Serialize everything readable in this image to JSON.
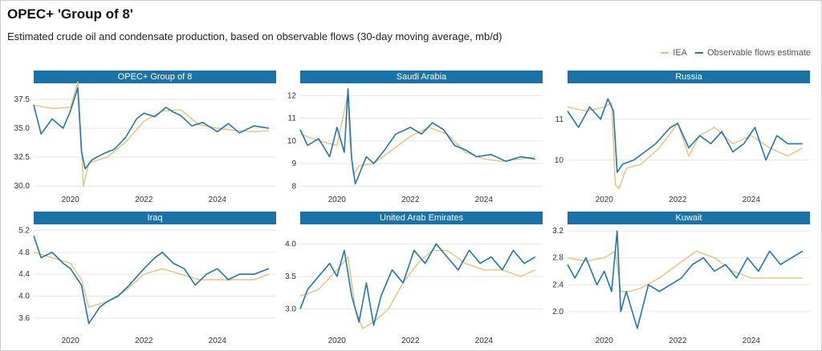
{
  "header": {
    "title": "OPEC+ 'Group of 8'",
    "subtitle": "Estimated crude oil and condensate production, based on observable flows (30-day moving average, mb/d)"
  },
  "legend": {
    "items": [
      {
        "label": "IEA",
        "color": "#e8c27a"
      },
      {
        "label": "Observable flows estimate",
        "color": "#1f77b4"
      }
    ]
  },
  "colors": {
    "panel_header": "#1a73a8",
    "iea": "#e8c27a",
    "obs": "#1f77b4"
  },
  "chart_data": [
    {
      "type": "line",
      "title": "OPEC+ Group of 8",
      "x_ticks": [
        2020,
        2022,
        2024
      ],
      "xlim": [
        2019.0,
        2025.6
      ],
      "y_ticks": [
        "30.0",
        "32.5",
        "35.0",
        "37.5"
      ],
      "ylim": [
        29.6,
        38.6
      ],
      "series": [
        {
          "name": "IEA",
          "x": [
            2019.0,
            2019.5,
            2020.0,
            2020.2,
            2020.3,
            2020.35,
            2020.5,
            2021.0,
            2021.5,
            2022.0,
            2022.5,
            2023.0,
            2023.5,
            2024.0,
            2024.5,
            2025.0,
            2025.4
          ],
          "y": [
            37.0,
            36.7,
            36.8,
            39.0,
            33.5,
            30.0,
            32.0,
            32.5,
            33.8,
            35.6,
            36.5,
            36.6,
            35.3,
            35.0,
            34.8,
            34.7,
            34.8
          ]
        },
        {
          "name": "Observable flows estimate",
          "x": [
            2019.0,
            2019.2,
            2019.5,
            2019.8,
            2020.0,
            2020.2,
            2020.3,
            2020.4,
            2020.6,
            2020.9,
            2021.2,
            2021.5,
            2021.8,
            2022.0,
            2022.3,
            2022.6,
            2022.8,
            2023.0,
            2023.3,
            2023.6,
            2024.0,
            2024.3,
            2024.6,
            2025.0,
            2025.4
          ],
          "y": [
            37.0,
            34.5,
            35.8,
            35.0,
            36.5,
            38.5,
            33.0,
            31.5,
            32.3,
            32.8,
            33.2,
            34.2,
            35.8,
            36.3,
            36.0,
            36.8,
            36.4,
            36.1,
            35.2,
            35.5,
            34.7,
            35.4,
            34.6,
            35.2,
            35.0
          ]
        }
      ]
    },
    {
      "type": "line",
      "title": "Saudi Arabia",
      "x_ticks": [
        2020,
        2022,
        2024
      ],
      "xlim": [
        2019.0,
        2025.6
      ],
      "y_ticks": [
        "8",
        "9",
        "10",
        "11",
        "12"
      ],
      "ylim": [
        7.8,
        12.4
      ],
      "series": [
        {
          "name": "IEA",
          "x": [
            2019.0,
            2019.5,
            2020.0,
            2020.3,
            2020.35,
            2020.45,
            2020.6,
            2021.0,
            2021.5,
            2022.0,
            2022.5,
            2023.0,
            2023.5,
            2024.0,
            2024.5,
            2025.0,
            2025.4
          ],
          "y": [
            10.3,
            10.0,
            9.8,
            12.1,
            10.0,
            8.5,
            8.9,
            9.0,
            9.6,
            10.2,
            10.6,
            10.3,
            9.5,
            9.2,
            9.1,
            9.2,
            9.3
          ]
        },
        {
          "name": "Observable flows estimate",
          "x": [
            2019.0,
            2019.2,
            2019.5,
            2019.8,
            2020.0,
            2020.2,
            2020.3,
            2020.4,
            2020.5,
            2020.8,
            2021.0,
            2021.3,
            2021.6,
            2022.0,
            2022.3,
            2022.6,
            2022.9,
            2023.2,
            2023.5,
            2023.8,
            2024.2,
            2024.6,
            2025.0,
            2025.4
          ],
          "y": [
            10.5,
            9.8,
            10.1,
            9.3,
            10.6,
            9.5,
            12.3,
            9.2,
            8.1,
            9.3,
            9.0,
            9.6,
            10.3,
            10.6,
            10.3,
            10.8,
            10.5,
            9.8,
            9.6,
            9.3,
            9.4,
            9.1,
            9.3,
            9.2
          ]
        }
      ]
    },
    {
      "type": "line",
      "title": "Russia",
      "x_ticks": [
        2020,
        2022,
        2024
      ],
      "xlim": [
        2019.0,
        2025.6
      ],
      "y_ticks": [
        "10",
        "11"
      ],
      "ylim": [
        9.25,
        11.8
      ],
      "series": [
        {
          "name": "IEA",
          "x": [
            2019.0,
            2019.5,
            2020.0,
            2020.2,
            2020.3,
            2020.4,
            2020.6,
            2021.0,
            2021.5,
            2022.0,
            2022.3,
            2022.6,
            2023.0,
            2023.5,
            2024.0,
            2024.5,
            2025.0,
            2025.4
          ],
          "y": [
            11.3,
            11.2,
            11.3,
            11.4,
            9.4,
            9.3,
            9.8,
            9.9,
            10.3,
            10.9,
            10.1,
            10.6,
            10.8,
            10.4,
            10.6,
            10.3,
            10.1,
            10.3
          ]
        },
        {
          "name": "Observable flows estimate",
          "x": [
            2019.0,
            2019.3,
            2019.6,
            2019.9,
            2020.1,
            2020.25,
            2020.35,
            2020.5,
            2020.8,
            2021.1,
            2021.4,
            2021.8,
            2022.0,
            2022.3,
            2022.6,
            2022.9,
            2023.2,
            2023.5,
            2023.8,
            2024.1,
            2024.4,
            2024.7,
            2025.0,
            2025.4
          ],
          "y": [
            11.2,
            10.8,
            11.3,
            11.0,
            11.5,
            11.2,
            9.7,
            9.9,
            10.0,
            10.2,
            10.4,
            10.8,
            10.9,
            10.3,
            10.6,
            10.4,
            10.7,
            10.2,
            10.4,
            10.8,
            10.0,
            10.6,
            10.4,
            10.4
          ]
        }
      ]
    },
    {
      "type": "line",
      "title": "Iraq",
      "x_ticks": [
        2020,
        2022,
        2024
      ],
      "xlim": [
        2019.0,
        2025.6
      ],
      "y_ticks": [
        "3.6",
        "4.0",
        "4.4",
        "4.8",
        "5.2"
      ],
      "ylim": [
        3.35,
        5.25
      ],
      "series": [
        {
          "name": "IEA",
          "x": [
            2019.0,
            2019.5,
            2020.0,
            2020.3,
            2020.5,
            2021.0,
            2021.5,
            2022.0,
            2022.5,
            2023.0,
            2023.5,
            2024.0,
            2024.5,
            2025.0,
            2025.4
          ],
          "y": [
            4.8,
            4.7,
            4.6,
            4.3,
            3.8,
            3.9,
            4.1,
            4.4,
            4.5,
            4.4,
            4.3,
            4.3,
            4.3,
            4.3,
            4.4
          ]
        },
        {
          "name": "Observable flows estimate",
          "x": [
            2019.0,
            2019.2,
            2019.5,
            2019.8,
            2020.0,
            2020.3,
            2020.5,
            2020.8,
            2021.0,
            2021.3,
            2021.6,
            2022.0,
            2022.3,
            2022.5,
            2022.8,
            2023.1,
            2023.4,
            2023.7,
            2024.0,
            2024.3,
            2024.6,
            2025.0,
            2025.4
          ],
          "y": [
            5.1,
            4.7,
            4.8,
            4.6,
            4.5,
            4.2,
            3.5,
            3.8,
            3.9,
            4.0,
            4.2,
            4.5,
            4.7,
            4.8,
            4.6,
            4.5,
            4.2,
            4.4,
            4.5,
            4.3,
            4.4,
            4.4,
            4.5
          ]
        }
      ]
    },
    {
      "type": "line",
      "title": "United Arab Emirates",
      "x_ticks": [
        2020,
        2022,
        2024
      ],
      "xlim": [
        2019.0,
        2025.6
      ],
      "y_ticks": [
        "3.0",
        "3.5",
        "4.0"
      ],
      "ylim": [
        2.65,
        4.25
      ],
      "series": [
        {
          "name": "IEA",
          "x": [
            2019.0,
            2019.5,
            2020.0,
            2020.3,
            2020.5,
            2020.7,
            2021.0,
            2021.4,
            2021.8,
            2022.2,
            2022.6,
            2023.0,
            2023.5,
            2024.0,
            2024.5,
            2025.0,
            2025.4
          ],
          "y": [
            3.2,
            3.3,
            3.6,
            3.8,
            3.0,
            2.7,
            2.8,
            3.0,
            3.4,
            3.7,
            3.9,
            3.9,
            3.7,
            3.6,
            3.6,
            3.5,
            3.6
          ]
        },
        {
          "name": "Observable flows estimate",
          "x": [
            2019.0,
            2019.2,
            2019.5,
            2019.8,
            2020.0,
            2020.2,
            2020.4,
            2020.6,
            2020.8,
            2021.0,
            2021.2,
            2021.5,
            2021.8,
            2022.1,
            2022.4,
            2022.7,
            2023.0,
            2023.3,
            2023.6,
            2023.9,
            2024.2,
            2024.5,
            2024.8,
            2025.1,
            2025.4
          ],
          "y": [
            3.0,
            3.3,
            3.5,
            3.7,
            3.5,
            3.9,
            3.2,
            2.8,
            3.4,
            2.75,
            3.2,
            3.6,
            3.4,
            3.9,
            3.7,
            4.0,
            3.8,
            3.6,
            3.9,
            3.7,
            3.8,
            3.6,
            3.9,
            3.7,
            3.8
          ]
        }
      ]
    },
    {
      "type": "line",
      "title": "Kuwait",
      "x_ticks": [
        2020,
        2022,
        2024
      ],
      "xlim": [
        2019.0,
        2025.6
      ],
      "y_ticks": [
        "2.0",
        "2.4",
        "2.8",
        "3.2"
      ],
      "ylim": [
        1.7,
        3.25
      ],
      "series": [
        {
          "name": "IEA",
          "x": [
            2019.0,
            2019.5,
            2020.0,
            2020.3,
            2020.45,
            2020.7,
            2021.0,
            2021.5,
            2022.0,
            2022.5,
            2023.0,
            2023.5,
            2024.0,
            2024.5,
            2025.0,
            2025.4
          ],
          "y": [
            2.8,
            2.75,
            2.8,
            2.9,
            2.3,
            2.3,
            2.35,
            2.5,
            2.7,
            2.9,
            2.8,
            2.6,
            2.5,
            2.5,
            2.5,
            2.5
          ]
        },
        {
          "name": "Observable flows estimate",
          "x": [
            2019.0,
            2019.2,
            2019.5,
            2019.8,
            2020.0,
            2020.2,
            2020.35,
            2020.45,
            2020.6,
            2020.9,
            2021.2,
            2021.5,
            2021.8,
            2022.1,
            2022.4,
            2022.7,
            2023.0,
            2023.3,
            2023.6,
            2023.9,
            2024.2,
            2024.5,
            2024.8,
            2025.1,
            2025.4
          ],
          "y": [
            2.7,
            2.5,
            2.8,
            2.4,
            2.6,
            2.3,
            3.2,
            2.0,
            2.3,
            1.75,
            2.4,
            2.3,
            2.4,
            2.5,
            2.7,
            2.8,
            2.6,
            2.7,
            2.5,
            2.8,
            2.6,
            2.9,
            2.7,
            2.8,
            2.9
          ]
        }
      ]
    }
  ]
}
